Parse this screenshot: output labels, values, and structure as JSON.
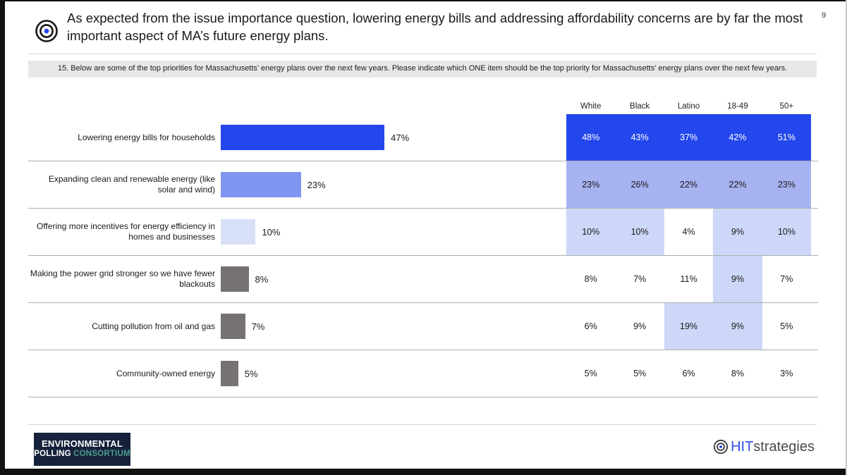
{
  "page_number": "9",
  "title": "As expected from the issue importance question, lowering energy bills and addressing affordability concerns are by far the most important aspect of MA’s future energy plans.",
  "question": "15. Below are some of the top priorities for Massachusetts’ energy plans over the next few years. Please indicate which ONE item should be the top priority for Massachusetts’ energy plans over the next few years.",
  "chart_data": {
    "type": "bar",
    "orientation": "horizontal",
    "unit": "%",
    "xlim": [
      0,
      50
    ],
    "grid": false,
    "columns": [
      "White",
      "Black",
      "Latino",
      "18-49",
      "50+"
    ],
    "rows": [
      {
        "label": "Lowering energy bills for households",
        "value": 47,
        "bar_color": "#2347EC",
        "cells": [
          48,
          43,
          37,
          42,
          51
        ],
        "highlights": [
          "strong",
          "strong",
          "strong",
          "strong",
          "strong"
        ]
      },
      {
        "label": "Expanding clean and renewable energy (like solar and wind)",
        "value": 23,
        "bar_color": "#8095F0",
        "cells": [
          23,
          26,
          22,
          22,
          23
        ],
        "highlights": [
          "medium",
          "medium",
          "medium",
          "medium",
          "medium"
        ]
      },
      {
        "label": "Offering more incentives for energy efficiency in homes and businesses",
        "value": 10,
        "bar_color": "#D8DFF9",
        "cells": [
          10,
          10,
          4,
          9,
          10
        ],
        "highlights": [
          "light",
          "light",
          "none",
          "light",
          "light"
        ]
      },
      {
        "label": "Making the power grid stronger so we have fewer blackouts",
        "value": 8,
        "bar_color": "#767271",
        "cells": [
          8,
          7,
          11,
          9,
          7
        ],
        "highlights": [
          "none",
          "none",
          "none",
          "light",
          "none"
        ]
      },
      {
        "label": "Cutting pollution from oil and gas",
        "value": 7,
        "bar_color": "#767271",
        "cells": [
          6,
          9,
          19,
          9,
          5
        ],
        "highlights": [
          "none",
          "none",
          "light",
          "light",
          "none"
        ]
      },
      {
        "label": "Community-owned energy",
        "value": 5,
        "bar_color": "#767271",
        "cells": [
          5,
          5,
          6,
          8,
          3
        ],
        "highlights": [
          "none",
          "none",
          "none",
          "none",
          "none"
        ]
      }
    ]
  },
  "colors": {
    "cell_strong_bg": "#2347EC",
    "cell_strong_text": "#FFFFFF",
    "cell_medium_bg": "#A7B2F1",
    "cell_light_bg": "#CDD7F7",
    "accent_blue": "#2347EC",
    "banner_bg": "#E8E8E8",
    "epc_navy": "#16213B",
    "epc_teal": "#4E9C8B",
    "hit_blue": "#2E51E8"
  },
  "footer": {
    "epc_line1": "ENVIRONMENTAL",
    "epc_polling": "POLLING",
    "epc_consortium": " CONSORTIUM",
    "hit_name": "HIT",
    "hit_suffix": "strategies"
  }
}
